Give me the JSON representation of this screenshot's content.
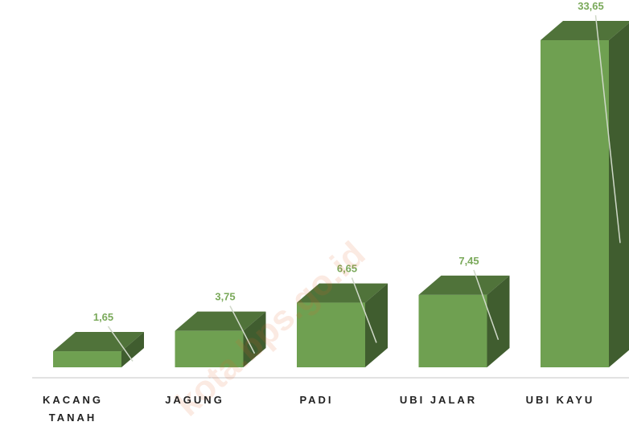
{
  "chart_data": {
    "type": "bar3d",
    "categories": [
      "KACANG TANAH",
      "JAGUNG",
      "PADI",
      "UBI JALAR",
      "UBI KAYU"
    ],
    "values": [
      1.65,
      3.75,
      6.65,
      7.45,
      33.65
    ],
    "value_labels": [
      "1,65",
      "3,75",
      "6,65",
      "7,45",
      "33,65"
    ],
    "color": "#6fa051",
    "annotations": [
      "kota.bps.go.id"
    ]
  }
}
